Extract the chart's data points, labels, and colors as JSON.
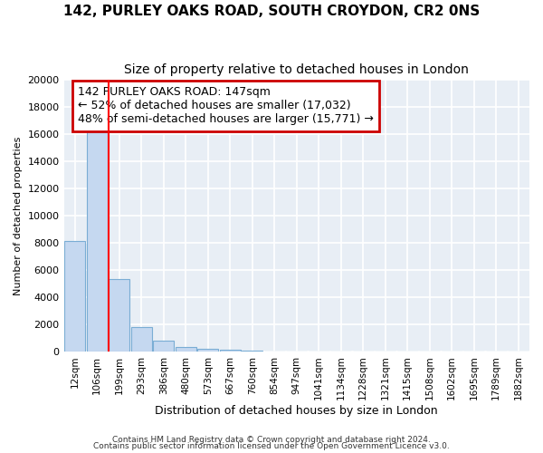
{
  "title1": "142, PURLEY OAKS ROAD, SOUTH CROYDON, CR2 0NS",
  "title2": "Size of property relative to detached houses in London",
  "xlabel": "Distribution of detached houses by size in London",
  "ylabel": "Number of detached properties",
  "bar_labels": [
    "12sqm",
    "106sqm",
    "199sqm",
    "293sqm",
    "386sqm",
    "480sqm",
    "573sqm",
    "667sqm",
    "760sqm",
    "854sqm",
    "947sqm",
    "1041sqm",
    "1134sqm",
    "1228sqm",
    "1321sqm",
    "1415sqm",
    "1508sqm",
    "1602sqm",
    "1695sqm",
    "1789sqm",
    "1882sqm"
  ],
  "bar_values": [
    8100,
    16500,
    5300,
    1800,
    780,
    290,
    200,
    100,
    50,
    0,
    0,
    0,
    0,
    0,
    0,
    0,
    0,
    0,
    0,
    0,
    0
  ],
  "bar_color": "#c5d8f0",
  "bar_edgecolor": "#7aadd4",
  "red_line_x": 1.5,
  "annotation_text": "142 PURLEY OAKS ROAD: 147sqm\n← 52% of detached houses are smaller (17,032)\n48% of semi-detached houses are larger (15,771) →",
  "annotation_box_color": "#ffffff",
  "annotation_border_color": "#cc0000",
  "ylim": [
    0,
    20000
  ],
  "yticks": [
    0,
    2000,
    4000,
    6000,
    8000,
    10000,
    12000,
    14000,
    16000,
    18000,
    20000
  ],
  "footnote1": "Contains HM Land Registry data © Crown copyright and database right 2024.",
  "footnote2": "Contains public sector information licensed under the Open Government Licence v3.0.",
  "fig_bg_color": "#ffffff",
  "plot_bg_color": "#e8eef5",
  "grid_color": "#ffffff",
  "title1_fontsize": 11,
  "title2_fontsize": 10,
  "xlabel_fontsize": 9,
  "ylabel_fontsize": 8,
  "annotation_fontsize": 9
}
